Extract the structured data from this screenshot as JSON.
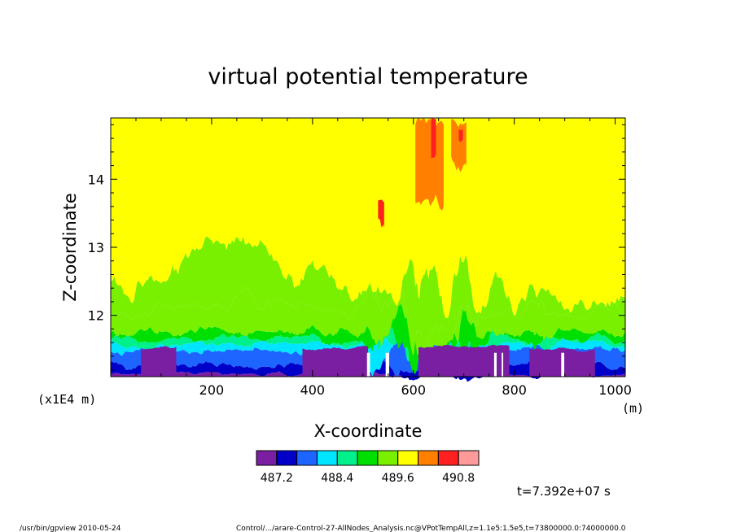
{
  "chart_data": {
    "type": "heatmap",
    "title": "virtual potential temperature",
    "xlabel": "X-coordinate",
    "ylabel": "Z-coordinate",
    "x_unit": "(m)",
    "y_scale_note": "(x1E4 m)",
    "xlim": [
      0,
      1020
    ],
    "ylim": [
      11.1,
      14.9
    ],
    "x_ticks": [
      200,
      400,
      600,
      800,
      1000
    ],
    "y_ticks": [
      12,
      13,
      14
    ],
    "levels": [
      486.6,
      486.9,
      487.2,
      487.5,
      487.8,
      488.1,
      488.4,
      488.7,
      489.0,
      489.3,
      489.6,
      489.9,
      490.2,
      490.5,
      490.8,
      491.1
    ],
    "colorbar_labels": [
      "487.2",
      "488.4",
      "489.6",
      "490.8"
    ],
    "colors": [
      "#7b1fa2",
      "#0000c8",
      "#1e64ff",
      "#00e5ff",
      "#00f08c",
      "#00e000",
      "#78f000",
      "#ffff00",
      "#ff8000",
      "#ff2020",
      "#ff9a9a"
    ],
    "time_label": "t=7.392e+07 s",
    "bottom_left": "/usr/bin/gpview  2010-05-24",
    "bottom_right": "Control/.../arare-Control-27-AllNodes_Analysis.nc@VPotTempAll,z=1.1e5:1.5e5,t=73800000.0:74000000.0"
  }
}
